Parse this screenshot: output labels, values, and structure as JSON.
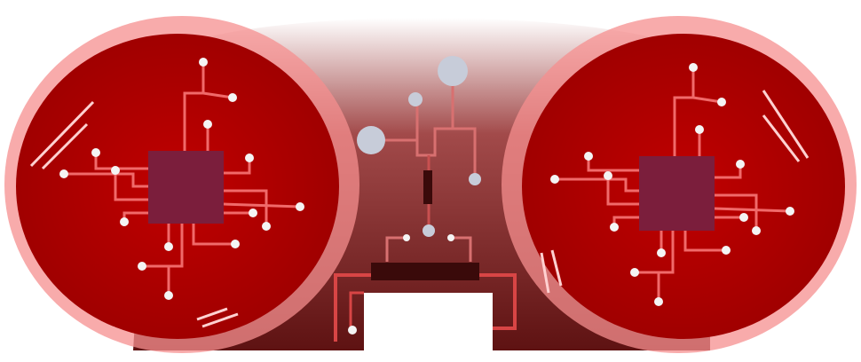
{
  "colors": {
    "background": "#ffffff",
    "lens_red": "#b00000",
    "lens_red_dark": "#7a0707",
    "lens_glow": "#f58f8f",
    "bridge_dark": "#6a1414",
    "chip": "#7b1e3c",
    "trace": "#f06a6a",
    "node": "#f4f4f4",
    "node_blue": "#c7ccd9",
    "highlight": "#ffd1d1",
    "clip_bar": "#3a0a0a"
  },
  "icons": {
    "left_chip": "microchip-icon",
    "right_chip": "microchip-icon",
    "center_circuit": "circuit-icon"
  }
}
